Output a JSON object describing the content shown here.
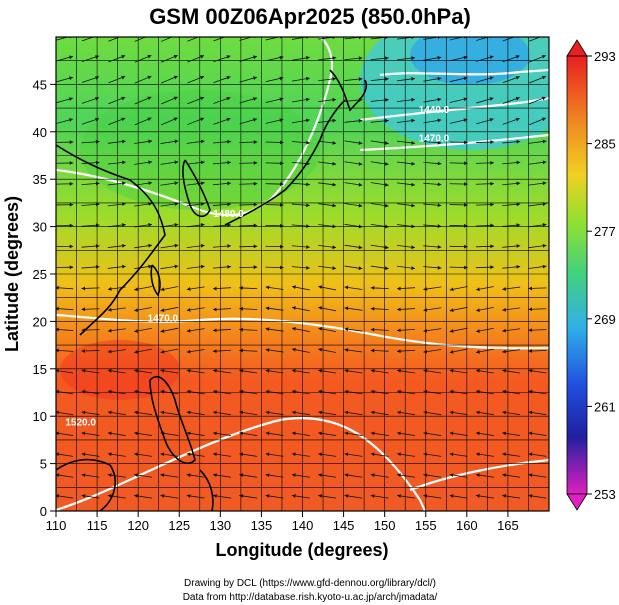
{
  "chart_data": {
    "type": "heatmap",
    "title": "GSM 00Z06Apr2025 (850.0hPa)",
    "xlabel": "Longitude (degrees)",
    "ylabel": "Latitude  (degrees)",
    "xlim": [
      110,
      170
    ],
    "ylim": [
      0,
      50
    ],
    "x_ticks": [
      110,
      115,
      120,
      125,
      130,
      135,
      140,
      145,
      150,
      155,
      160,
      165
    ],
    "y_ticks": [
      0,
      5,
      10,
      15,
      20,
      25,
      30,
      35,
      40,
      45
    ],
    "colorbar": {
      "min": 253,
      "max": 293,
      "tick_labels": [
        293,
        285,
        277,
        269,
        261,
        253
      ],
      "placement": "right"
    },
    "temperature_by_latitude": {
      "lat": [
        0,
        5,
        10,
        15,
        20,
        25,
        30,
        35,
        40,
        45,
        50
      ],
      "value": [
        289,
        289,
        289,
        290,
        287,
        283,
        280,
        277,
        276,
        275,
        274
      ]
    },
    "contour_labels": [
      {
        "text": "1440.0",
        "lon": 156,
        "lat": 42
      },
      {
        "text": "1470.0",
        "lon": 156,
        "lat": 39
      },
      {
        "text": "1480.0",
        "lon": 131,
        "lat": 31
      },
      {
        "text": "1470.0",
        "lon": 123,
        "lat": 20
      },
      {
        "text": "1520.0",
        "lon": 113,
        "lat": 9
      }
    ],
    "grid": true,
    "overlay": "streamlines",
    "coastlines": true
  },
  "credits": {
    "line1": "Drawing by DCL (https://www.gfd-dennou.org/library/dcl/)",
    "line2": "Data from http://database.rish.kyoto-u.ac.jp/arch/jmadata/"
  }
}
